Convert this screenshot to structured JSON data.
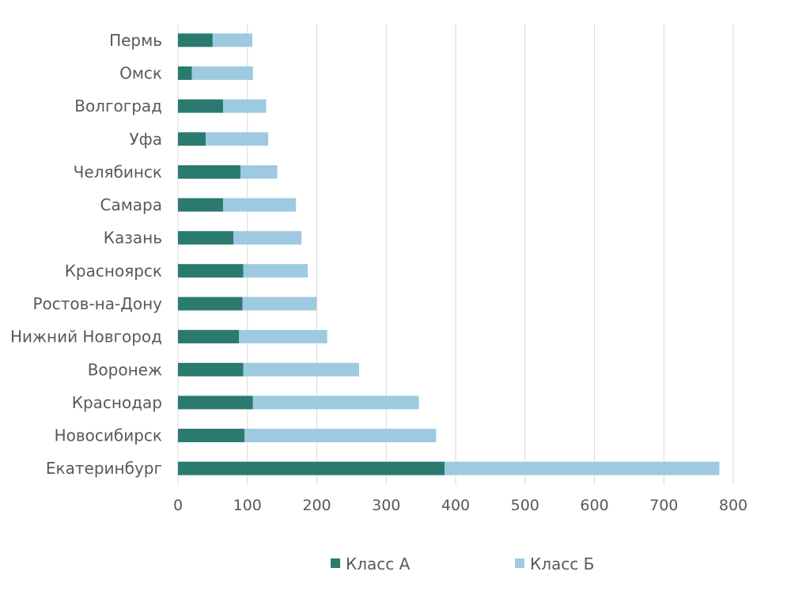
{
  "chart_data": {
    "type": "bar",
    "orientation": "horizontal",
    "stacked": true,
    "categories": [
      "Пермь",
      "Омск",
      "Волгоград",
      "Уфа",
      "Челябинск",
      "Самара",
      "Казань",
      "Красноярск",
      "Ростов-на-Дону",
      "Нижний Новгород",
      "Воронеж",
      "Краснодар",
      "Новосибирск",
      "Екатеринбург"
    ],
    "series": [
      {
        "name": "Класс А",
        "color": "#2a7a6f",
        "values": [
          50,
          20,
          65,
          40,
          90,
          65,
          80,
          94,
          93,
          88,
          94,
          108,
          96,
          384
        ]
      },
      {
        "name": "Класс Б",
        "color": "#9ecae1",
        "values": [
          57,
          88,
          62,
          90,
          53,
          105,
          98,
          93,
          107,
          127,
          167,
          239,
          276,
          396
        ]
      }
    ],
    "xlim": [
      0,
      800
    ],
    "xticks": [
      "0",
      "100",
      "200",
      "300",
      "400",
      "500",
      "600",
      "700",
      "800"
    ],
    "grid": true,
    "legend_position": "bottom",
    "title": "",
    "xlabel": "",
    "ylabel": ""
  }
}
